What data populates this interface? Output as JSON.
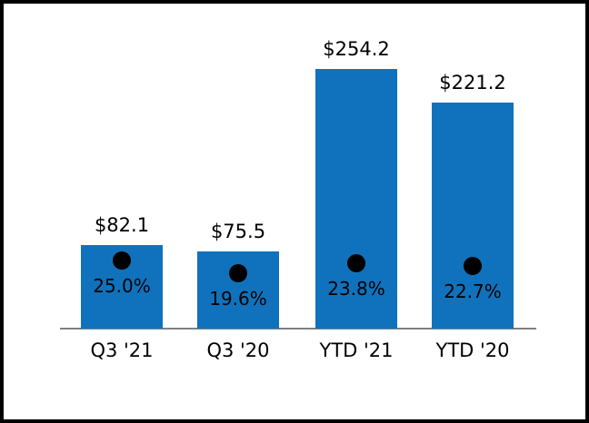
{
  "chart_data": {
    "type": "bar",
    "title": "",
    "xlabel": "",
    "ylabel": "",
    "categories": [
      "Q3 '21",
      "Q3 '20",
      "YTD '21",
      "YTD '20"
    ],
    "series": [
      {
        "name": "amount",
        "values": [
          82.1,
          75.5,
          254.2,
          221.2
        ],
        "labels": [
          "$82.1",
          "$75.5",
          "$254.2",
          "$221.2"
        ]
      },
      {
        "name": "percent",
        "values": [
          25.0,
          19.6,
          23.8,
          22.7
        ],
        "labels": [
          "25.0%",
          "19.6%",
          "23.8%",
          "22.7%"
        ]
      }
    ],
    "ylim": [
      0,
      280
    ],
    "grid": false,
    "legend": "none",
    "bar_color": "#1072BC",
    "marker_color": "#000000",
    "axis_line_color": "#808080",
    "border_color": "#000000",
    "background_color": "#FFFFFF"
  }
}
